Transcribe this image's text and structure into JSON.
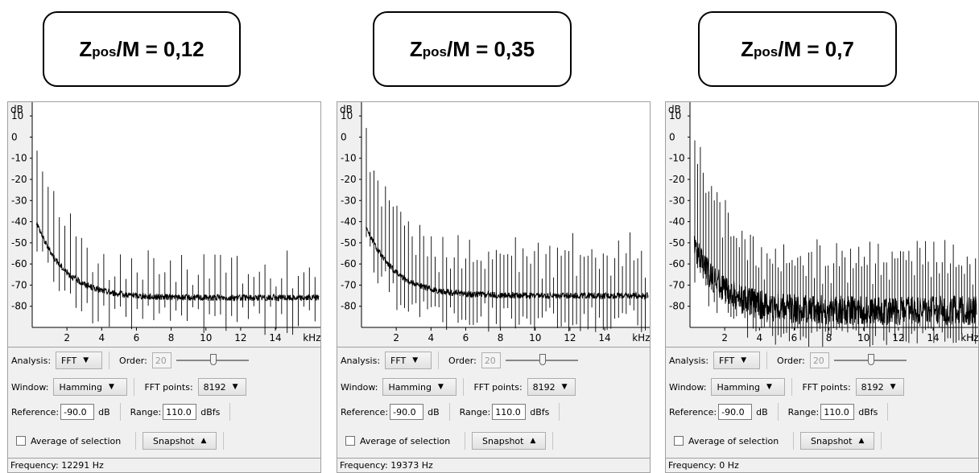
{
  "labels": [
    {
      "z": "Z",
      "sub": "pos",
      "rest": "/M = 0,12"
    },
    {
      "z": "Z",
      "sub": "pos",
      "rest": "/M = 0,35"
    },
    {
      "z": "Z",
      "sub": "pos",
      "rest": "/M = 0,7"
    }
  ],
  "panels": [
    {
      "analysis_label": "Analysis:",
      "analysis_value": "FFT",
      "order_label": "Order:",
      "order_value": "20",
      "window_label": "Window:",
      "window_value": "Hamming",
      "fft_points_label": "FFT points:",
      "fft_points_value": "8192",
      "reference_label": "Reference:",
      "reference_value": "-90.0",
      "reference_unit": "dB",
      "range_label": "Range:",
      "range_value": "110.0",
      "range_unit": "dBfs",
      "average_label": "Average of selection",
      "snapshot_label": "Snapshot",
      "frequency_text": "Frequency: 12291 Hz"
    },
    {
      "analysis_label": "Analysis:",
      "analysis_value": "FFT",
      "order_label": "Order:",
      "order_value": "20",
      "window_label": "Window:",
      "window_value": "Hamming",
      "fft_points_label": "FFT points:",
      "fft_points_value": "8192",
      "reference_label": "Reference:",
      "reference_value": "-90.0",
      "reference_unit": "dB",
      "range_label": "Range:",
      "range_value": "110.0",
      "range_unit": "dBfs",
      "average_label": "Average of selection",
      "snapshot_label": "Snapshot",
      "frequency_text": "Frequency: 19373 Hz"
    },
    {
      "analysis_label": "Analysis:",
      "analysis_value": "FFT",
      "order_label": "Order:",
      "order_value": "20",
      "window_label": "Window:",
      "window_value": "Hamming",
      "fft_points_label": "FFT points:",
      "fft_points_value": "8192",
      "reference_label": "Reference:",
      "reference_value": "-90.0",
      "reference_unit": "dB",
      "range_label": "Range:",
      "range_value": "110.0",
      "range_unit": "dBfs",
      "average_label": "Average of selection",
      "snapshot_label": "Snapshot",
      "frequency_text": "Frequency: 0 Hz"
    }
  ],
  "chart_data": [
    {
      "type": "line",
      "ylabel": "dB",
      "xlabel": "kHz",
      "y_ticks": [
        "10",
        "0",
        "-10",
        "-20",
        "-30",
        "-40",
        "-50",
        "-60",
        "-70",
        "-80"
      ],
      "x_ticks": [
        "2",
        "4",
        "6",
        "8",
        "10",
        "12",
        "14",
        "kHz"
      ],
      "xlim": [
        0,
        16.5
      ],
      "ylim": [
        -90,
        15
      ],
      "floor_start": -40,
      "floor_end": -76,
      "harmonic_spacing_khz": 0.32,
      "harmonic_peak_start": 8,
      "harmonic_peak_end": -60,
      "noise": 1.5
    },
    {
      "type": "line",
      "ylabel": "dB",
      "xlabel": "kHz",
      "y_ticks": [
        "10",
        "0",
        "-10",
        "-20",
        "-30",
        "-40",
        "-50",
        "-60",
        "-70",
        "-80"
      ],
      "x_ticks": [
        "2",
        "4",
        "6",
        "8",
        "10",
        "12",
        "14",
        "kHz"
      ],
      "xlim": [
        0,
        16.5
      ],
      "ylim": [
        -90,
        15
      ],
      "floor_start": -42,
      "floor_end": -75,
      "harmonic_spacing_khz": 0.22,
      "harmonic_peak_start": 10,
      "harmonic_peak_end": -52,
      "noise": 1.5
    },
    {
      "type": "line",
      "ylabel": "dB",
      "xlabel": "kHz",
      "y_ticks": [
        "10",
        "0",
        "-10",
        "-20",
        "-30",
        "-40",
        "-50",
        "-60",
        "-70",
        "-80"
      ],
      "x_ticks": [
        "2",
        "4",
        "6",
        "8",
        "10",
        "12",
        "14",
        "kHz"
      ],
      "xlim": [
        0,
        16.5
      ],
      "ylim": [
        -90,
        15
      ],
      "floor_start": -52,
      "floor_end": -82,
      "harmonic_spacing_khz": 0.16,
      "harmonic_peak_start": 8,
      "harmonic_peak_end": -55,
      "noise": 7
    }
  ]
}
